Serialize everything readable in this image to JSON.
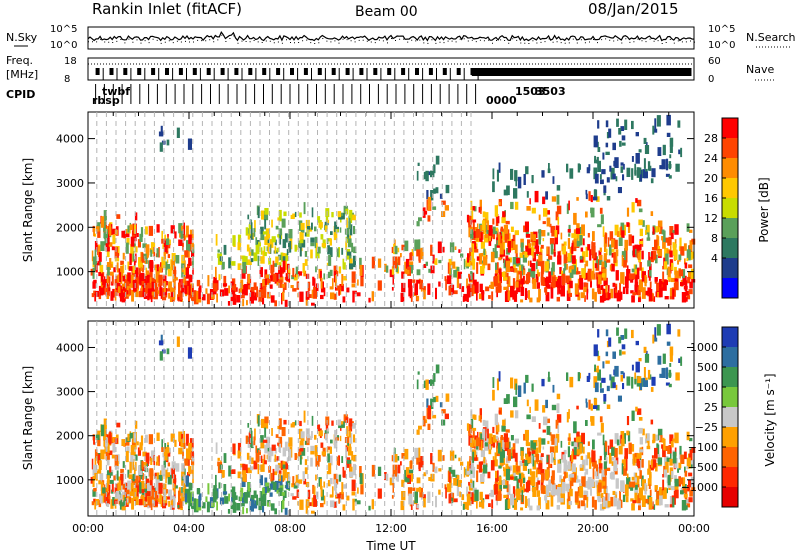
{
  "header": {
    "station": "Rankin Inlet (fitACF)",
    "beam": "Beam 00",
    "date": "08/Jan/2015"
  },
  "status_panels": {
    "noise": {
      "left_label": "N.Sky",
      "right_label": "N.Search",
      "left_ticks": [
        "10^5",
        "10^0"
      ],
      "right_ticks": [
        "10^5",
        "10^0"
      ]
    },
    "freq_nave": {
      "left_label_line1": "Freq.",
      "left_label_line2": "[MHz]",
      "right_label": "Nave",
      "left_ticks": [
        "18",
        "8"
      ],
      "right_ticks": [
        "60",
        "0"
      ]
    },
    "cpid": {
      "label": "CPID",
      "program_fragments": [
        "twbf",
        "rbsp",
        "3503",
        "1503",
        "0000"
      ]
    }
  },
  "chart_data": [
    {
      "type": "heatmap",
      "panel": "power",
      "xlabel": "",
      "ylabel": "Slant Range [km]",
      "x_ticks": [
        "00:00",
        "04:00",
        "08:00",
        "12:00",
        "16:00",
        "20:00",
        "00:00"
      ],
      "y_ticks": [
        1000,
        2000,
        3000,
        4000
      ],
      "xlim_hours": [
        0,
        24
      ],
      "ylim_km": [
        180,
        4600
      ],
      "colorbar": {
        "title": "Power [dB]",
        "ticks": [
          "28",
          "24",
          "20",
          "16",
          "12",
          "8",
          "4"
        ],
        "colors": [
          "#ff0000",
          "#ff4400",
          "#ff8c00",
          "#ffc800",
          "#c8dc00",
          "#5aa05a",
          "#2d7860",
          "#1e3c8c",
          "#0000ff"
        ]
      }
    },
    {
      "type": "heatmap",
      "panel": "velocity",
      "xlabel": "Time UT",
      "ylabel": "Slant Range [km]",
      "x_ticks": [
        "00:00",
        "04:00",
        "08:00",
        "12:00",
        "16:00",
        "20:00",
        "00:00"
      ],
      "y_ticks": [
        1000,
        2000,
        3000,
        4000
      ],
      "xlim_hours": [
        0,
        24
      ],
      "ylim_km": [
        180,
        4600
      ],
      "colorbar": {
        "title": "Velocity [m s⁻¹]",
        "ticks": [
          "1000",
          "500",
          "100",
          "25",
          "−25",
          "−100",
          "−500",
          "−1000"
        ],
        "colors": [
          "#1e3cb4",
          "#2d6ea0",
          "#3c9650",
          "#78c83c",
          "#c8c8c8",
          "#ffa000",
          "#ff6400",
          "#ff2800",
          "#e60000"
        ]
      }
    }
  ]
}
